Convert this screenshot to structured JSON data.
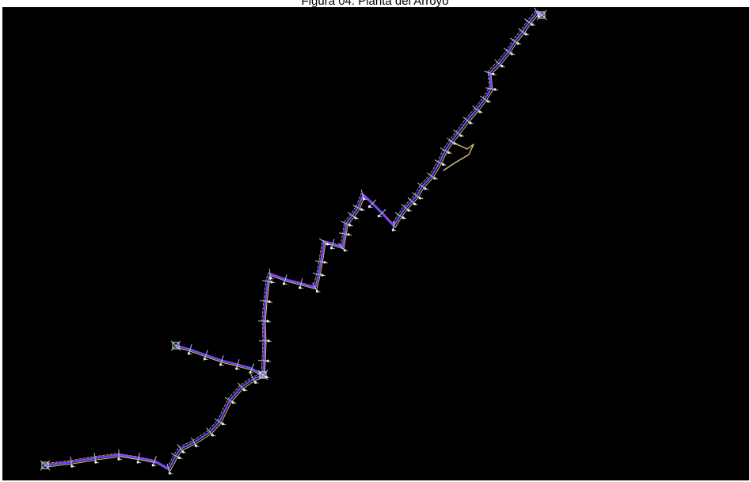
{
  "caption": "Figura 04: Planta del Arroyo",
  "colors": {
    "background": "#000000",
    "channel_primary": "#6a4bff",
    "channel_secondary": "#c03cc8",
    "channel_offset": "#d9c27a",
    "section_marks": "#9fd3e6",
    "station_labels": "#e8e8e8",
    "caption_text": "#000000"
  }
}
